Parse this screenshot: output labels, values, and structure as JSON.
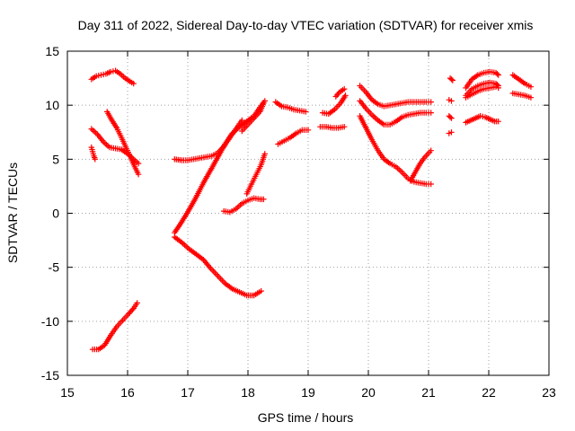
{
  "chart_data": {
    "type": "scatter",
    "title": "Day 311 of 2022, Sidereal Day-to-day VTEC variation (SDTVAR) for receiver xmis",
    "xlabel": "GPS time / hours",
    "ylabel": "SDTVAR / TECUs",
    "xlim": [
      15,
      23
    ],
    "ylim": [
      -15,
      15
    ],
    "xticks": [
      15,
      16,
      17,
      18,
      19,
      20,
      21,
      22,
      23
    ],
    "yticks": [
      -15,
      -10,
      -5,
      0,
      5,
      10,
      15
    ],
    "grid": true,
    "legend": "none",
    "marker": "plus",
    "color": "#ff0000",
    "series": [
      {
        "x": [
          15.4,
          15.48,
          15.56,
          15.64,
          15.72,
          15.8,
          15.88,
          15.96,
          16.04,
          16.1
        ],
        "y": [
          12.4,
          12.7,
          12.8,
          12.9,
          13.1,
          13.2,
          12.9,
          12.5,
          12.2,
          12.0
        ]
      },
      {
        "x": [
          15.4,
          15.42,
          15.44,
          15.46
        ],
        "y": [
          6.1,
          5.7,
          5.3,
          5.0
        ]
      },
      {
        "x": [
          15.4,
          15.5,
          15.6,
          15.7,
          15.8,
          15.9,
          16.0,
          16.1,
          16.18
        ],
        "y": [
          7.8,
          7.3,
          6.6,
          6.1,
          6.0,
          5.9,
          5.5,
          5.0,
          4.6
        ]
      },
      {
        "x": [
          15.66,
          15.74,
          15.82,
          15.9,
          15.98,
          16.06,
          16.12,
          16.18
        ],
        "y": [
          9.4,
          8.6,
          7.9,
          7.0,
          6.0,
          5.1,
          4.3,
          3.6
        ]
      },
      {
        "x": [
          15.42,
          15.52,
          15.62,
          15.72,
          15.82,
          15.92,
          16.02,
          16.1,
          16.16
        ],
        "y": [
          -12.6,
          -12.6,
          -12.2,
          -11.3,
          -10.5,
          -9.9,
          -9.3,
          -8.8,
          -8.3
        ]
      },
      {
        "x": [
          16.78,
          16.9,
          17.0,
          17.1,
          17.2,
          17.3,
          17.4,
          17.5,
          17.6,
          17.7,
          17.8,
          17.9
        ],
        "y": [
          5.0,
          4.9,
          4.9,
          5.0,
          5.1,
          5.2,
          5.3,
          5.6,
          6.2,
          7.0,
          7.8,
          8.6
        ]
      },
      {
        "x": [
          16.78,
          16.9,
          17.02,
          17.14,
          17.26,
          17.38,
          17.5,
          17.62,
          17.74,
          17.86,
          17.98,
          18.1,
          18.2,
          18.28
        ],
        "y": [
          -1.8,
          -0.8,
          0.3,
          1.5,
          2.8,
          4.0,
          5.2,
          6.4,
          7.4,
          8.0,
          8.5,
          9.0,
          9.8,
          10.4
        ]
      },
      {
        "x": [
          16.78,
          16.9,
          17.02,
          17.14,
          17.26,
          17.38,
          17.5,
          17.62,
          17.74,
          17.86,
          17.98,
          18.1,
          18.22
        ],
        "y": [
          -2.2,
          -2.7,
          -3.3,
          -3.8,
          -4.3,
          -5.1,
          -5.8,
          -6.5,
          -7.0,
          -7.3,
          -7.6,
          -7.6,
          -7.2
        ]
      },
      {
        "x": [
          17.6,
          17.7,
          17.8,
          17.9,
          18.0,
          18.1,
          18.2,
          18.26
        ],
        "y": [
          0.2,
          0.1,
          0.4,
          0.9,
          1.2,
          1.4,
          1.3,
          1.3
        ]
      },
      {
        "x": [
          17.9,
          18.0,
          18.1,
          18.2,
          18.26
        ],
        "y": [
          7.6,
          8.2,
          8.8,
          9.4,
          10.2
        ]
      },
      {
        "x": [
          17.98,
          18.06,
          18.14,
          18.22,
          18.28
        ],
        "y": [
          1.8,
          2.7,
          3.6,
          4.5,
          5.5
        ]
      },
      {
        "x": [
          18.46,
          18.56,
          18.66,
          18.76,
          18.86,
          18.96
        ],
        "y": [
          10.3,
          9.9,
          9.8,
          9.6,
          9.5,
          9.4
        ]
      },
      {
        "x": [
          18.5,
          18.6,
          18.7,
          18.8,
          18.9,
          19.0
        ],
        "y": [
          6.4,
          6.7,
          7.0,
          7.4,
          7.7,
          7.7
        ]
      },
      {
        "x": [
          19.2,
          19.3,
          19.4,
          19.5,
          19.6
        ],
        "y": [
          8.0,
          8.0,
          7.9,
          7.9,
          8.0
        ]
      },
      {
        "x": [
          19.24,
          19.34,
          19.44,
          19.54,
          19.62
        ],
        "y": [
          9.3,
          9.2,
          9.6,
          10.2,
          10.9
        ]
      },
      {
        "x": [
          19.46,
          19.52,
          19.6
        ],
        "y": [
          10.8,
          11.2,
          11.5
        ]
      },
      {
        "x": [
          19.86,
          19.96,
          20.06,
          20.16,
          20.26,
          20.36,
          20.46,
          20.56,
          20.66,
          20.76,
          20.86,
          20.96,
          21.04
        ],
        "y": [
          11.8,
          11.2,
          10.5,
          10.1,
          9.9,
          10.0,
          10.1,
          10.2,
          10.3,
          10.3,
          10.3,
          10.3,
          10.3
        ]
      },
      {
        "x": [
          19.86,
          19.96,
          20.06,
          20.16,
          20.26,
          20.36,
          20.46,
          20.56,
          20.66,
          20.76,
          20.86,
          20.96,
          21.04
        ],
        "y": [
          10.4,
          9.7,
          9.1,
          8.6,
          8.2,
          8.2,
          8.5,
          8.9,
          9.1,
          9.2,
          9.3,
          9.3,
          9.3
        ]
      },
      {
        "x": [
          19.86,
          19.96,
          20.06,
          20.16,
          20.26,
          20.36,
          20.46,
          20.56,
          20.66,
          20.76,
          20.86,
          20.96,
          21.04
        ],
        "y": [
          9.0,
          7.9,
          6.8,
          5.8,
          5.0,
          4.6,
          4.3,
          3.8,
          3.2,
          2.9,
          2.8,
          2.7,
          2.7
        ]
      },
      {
        "x": [
          20.7,
          20.78,
          20.86,
          20.94,
          21.04
        ],
        "y": [
          3.0,
          3.8,
          4.6,
          5.2,
          5.8
        ]
      },
      {
        "x": [
          21.36,
          21.38,
          21.4
        ],
        "y": [
          12.5,
          12.4,
          12.3
        ]
      },
      {
        "x": [
          21.34,
          21.38
        ],
        "y": [
          10.5,
          10.4
        ]
      },
      {
        "x": [
          21.34,
          21.38
        ],
        "y": [
          9.0,
          8.8
        ]
      },
      {
        "x": [
          21.34,
          21.38
        ],
        "y": [
          7.4,
          7.5
        ]
      },
      {
        "x": [
          21.62,
          21.7,
          21.78,
          21.86,
          21.94,
          22.02,
          22.1,
          22.16
        ],
        "y": [
          8.4,
          8.6,
          8.8,
          9.0,
          8.9,
          8.7,
          8.5,
          8.5
        ]
      },
      {
        "x": [
          21.62,
          21.72,
          21.82,
          21.92,
          22.02,
          22.12,
          22.16
        ],
        "y": [
          11.6,
          12.4,
          12.8,
          13.0,
          13.1,
          13.0,
          12.8
        ]
      },
      {
        "x": [
          21.62,
          21.72,
          21.82,
          21.92,
          22.02,
          22.12,
          22.16
        ],
        "y": [
          10.9,
          11.5,
          11.8,
          12.0,
          12.1,
          12.0,
          11.8
        ]
      },
      {
        "x": [
          21.62,
          21.72,
          21.82,
          21.92,
          22.02,
          22.12,
          22.16
        ],
        "y": [
          10.7,
          11.0,
          11.3,
          11.5,
          11.6,
          11.7,
          11.6
        ]
      },
      {
        "x": [
          22.4,
          22.5,
          22.6,
          22.7
        ],
        "y": [
          12.8,
          12.4,
          12.0,
          11.7
        ]
      },
      {
        "x": [
          22.4,
          22.5,
          22.6,
          22.7
        ],
        "y": [
          11.1,
          11.0,
          10.9,
          10.7
        ]
      }
    ]
  }
}
